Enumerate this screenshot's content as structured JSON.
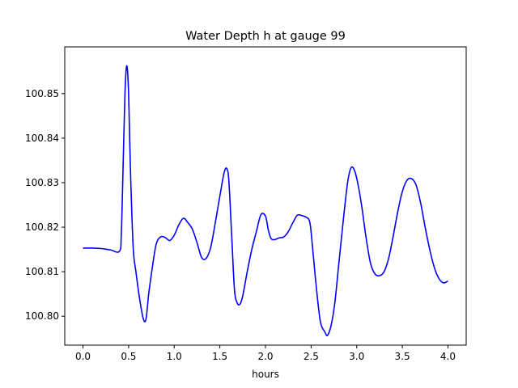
{
  "chart_data": {
    "type": "line",
    "title": "Water Depth h at gauge 99",
    "xlabel": "hours",
    "ylabel": "",
    "xlim": [
      -0.2,
      4.2
    ],
    "ylim": [
      100.7935,
      100.8605
    ],
    "xticks": [
      0.0,
      0.5,
      1.0,
      1.5,
      2.0,
      2.5,
      3.0,
      3.5,
      4.0
    ],
    "xtick_labels": [
      "0.0",
      "0.5",
      "1.0",
      "1.5",
      "2.0",
      "2.5",
      "3.0",
      "3.5",
      "4.0"
    ],
    "yticks": [
      100.8,
      100.81,
      100.82,
      100.83,
      100.84,
      100.85
    ],
    "ytick_labels": [
      "100.80",
      "100.81",
      "100.82",
      "100.83",
      "100.84",
      "100.85"
    ],
    "grid": false,
    "series": [
      {
        "color": "#0000ff",
        "x": [
          0.0,
          0.1,
          0.2,
          0.3,
          0.4,
          0.42,
          0.44,
          0.46,
          0.48,
          0.5,
          0.52,
          0.55,
          0.58,
          0.62,
          0.66,
          0.69,
          0.72,
          0.75,
          0.8,
          0.85,
          0.9,
          0.95,
          1.0,
          1.05,
          1.1,
          1.15,
          1.2,
          1.25,
          1.3,
          1.35,
          1.4,
          1.45,
          1.5,
          1.55,
          1.58,
          1.6,
          1.63,
          1.66,
          1.69,
          1.72,
          1.75,
          1.8,
          1.85,
          1.9,
          1.95,
          2.0,
          2.03,
          2.06,
          2.1,
          2.15,
          2.2,
          2.25,
          2.3,
          2.35,
          2.4,
          2.45,
          2.48,
          2.5,
          2.55,
          2.6,
          2.65,
          2.68,
          2.72,
          2.76,
          2.8,
          2.85,
          2.9,
          2.94,
          2.98,
          3.02,
          3.06,
          3.1,
          3.15,
          3.2,
          3.25,
          3.3,
          3.35,
          3.4,
          3.45,
          3.5,
          3.55,
          3.6,
          3.65,
          3.7,
          3.75,
          3.8,
          3.85,
          3.9,
          3.95,
          4.0
        ],
        "y": [
          100.8153,
          100.8153,
          100.8152,
          100.8149,
          100.8146,
          100.8185,
          100.834,
          100.85,
          100.8563,
          100.85,
          100.833,
          100.8155,
          100.81,
          100.804,
          100.7995,
          100.7993,
          100.805,
          100.8095,
          100.816,
          100.8178,
          100.8177,
          100.817,
          100.8182,
          100.8205,
          100.822,
          100.821,
          100.8195,
          100.8165,
          100.8132,
          100.813,
          100.8155,
          100.821,
          100.827,
          100.8325,
          100.833,
          100.83,
          100.818,
          100.806,
          100.803,
          100.8027,
          100.8045,
          100.81,
          100.815,
          100.819,
          100.8228,
          100.8225,
          100.8195,
          100.8175,
          100.8172,
          100.8176,
          100.8178,
          100.819,
          100.821,
          100.8227,
          100.8226,
          100.8222,
          100.8215,
          100.819,
          100.808,
          100.799,
          100.7965,
          100.7957,
          100.798,
          100.803,
          100.811,
          100.821,
          100.83,
          100.8334,
          100.8325,
          100.829,
          100.824,
          100.818,
          100.812,
          100.8095,
          100.8091,
          100.81,
          100.813,
          100.818,
          100.8235,
          100.828,
          100.8305,
          100.8309,
          100.8295,
          100.8255,
          100.82,
          100.815,
          100.811,
          100.8085,
          100.8075,
          100.8079
        ]
      }
    ]
  }
}
